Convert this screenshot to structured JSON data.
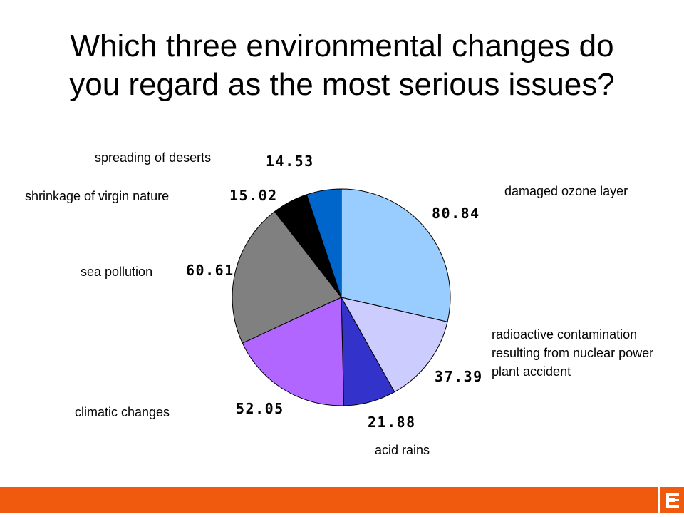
{
  "title": {
    "line1": "Which three environmental changes do",
    "line2": "you regard as the most serious issues?"
  },
  "colors": {
    "footer": "#f05a0e"
  },
  "chart_data": {
    "type": "pie",
    "title": "Which three environmental changes do you regard as the most serious issues?",
    "start_angle_deg": 0,
    "direction": "clockwise",
    "slices": [
      {
        "label": "damaged ozone layer",
        "value": 80.84,
        "value_text": "80.84",
        "color": "#99ccff"
      },
      {
        "label": "radioactive contamination resulting from nuclear power plant accident",
        "value": 37.39,
        "value_text": "37.39",
        "color": "#ccccff"
      },
      {
        "label": "acid rains",
        "value": 21.88,
        "value_text": "21.88",
        "color": "#3333cc"
      },
      {
        "label": "climatic changes",
        "value": 52.05,
        "value_text": "52.05",
        "color": "#b066ff"
      },
      {
        "label": "sea pollution",
        "value": 60.61,
        "value_text": "60.61",
        "color": "#808080"
      },
      {
        "label": "shrinkage of virgin nature",
        "value": 15.02,
        "value_text": "15.02",
        "color": "#000000"
      },
      {
        "label": "spreading of deserts",
        "value": 14.53,
        "value_text": "14.53",
        "color": "#0066cc"
      }
    ]
  }
}
